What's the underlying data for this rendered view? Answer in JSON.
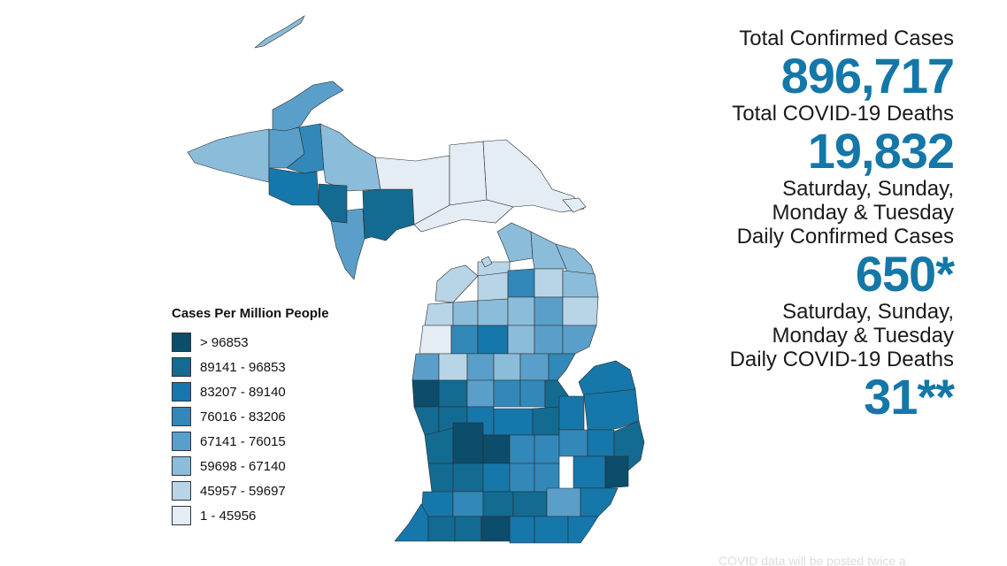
{
  "colors": {
    "c8": "#0c4d6b",
    "c7": "#136b92",
    "c6": "#1677ab",
    "c5": "#3288b9",
    "c4": "#5a9fc9",
    "c3": "#8bbcda",
    "c2": "#b8d4e7",
    "c1": "#e4ecf4",
    "accent": "#1477a8"
  },
  "legend": {
    "title": "Cases Per Million People",
    "items": [
      {
        "label": "> 96853",
        "color": "#0c4d6b"
      },
      {
        "label": "89141 - 96853",
        "color": "#136b92"
      },
      {
        "label": "83207 - 89140",
        "color": "#1677ab"
      },
      {
        "label": "76016 - 83206",
        "color": "#3288b9"
      },
      {
        "label": "67141 - 76015",
        "color": "#5a9fc9"
      },
      {
        "label": "59698 - 67140",
        "color": "#8bbcda"
      },
      {
        "label": "45957 - 59697",
        "color": "#b8d4e7"
      },
      {
        "label": "1 - 45956",
        "color": "#e4ecf4"
      }
    ]
  },
  "stats": {
    "total_cases_label": "Total Confirmed Cases",
    "total_cases_value": "896,717",
    "total_deaths_label": "Total COVID-19 Deaths",
    "total_deaths_value": "19,832",
    "daily_cases_label": "Saturday, Sunday, Monday & Tuesday Daily Confirmed Cases",
    "daily_cases_value": "650*",
    "daily_deaths_label": "Saturday, Sunday, Monday & Tuesday Daily COVID-19 Deaths",
    "daily_deaths_value": "31**"
  },
  "footnote": "COVID data will be posted twice a"
}
